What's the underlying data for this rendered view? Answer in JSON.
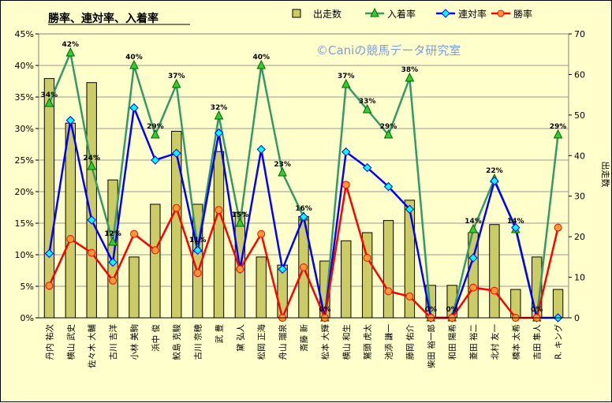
{
  "chart_data": {
    "type": "bar",
    "title": "勝率、連対率、入着率",
    "watermark": "©Caniの競馬データ研究室",
    "ylabel_right": "出走数",
    "y_left": {
      "min": 0,
      "max": 45,
      "step": 5,
      "unit": "%"
    },
    "y_right": {
      "min": 0,
      "max": 70,
      "step": 10
    },
    "grid": true,
    "legend_position": "top",
    "categories": [
      "丹内 祐次",
      "横山 武史",
      "佐々木 大輔",
      "古川 吉洋",
      "小林 美駒",
      "浜中 俊",
      "鮫島 克駿",
      "古川 奈穂",
      "武 豊",
      "黛 弘人",
      "松岡 正海",
      "舟山 瑠泉",
      "斎藤 新",
      "松本 大輝",
      "横山 和生",
      "鷲頭 虎太",
      "池添 謙一",
      "藤岡 佑介",
      "柴田 裕一郎",
      "和田 陽希",
      "菱田 裕二",
      "北村 友一",
      "橋本 太希",
      "吉田 隼人",
      "R. キング"
    ],
    "series": [
      {
        "name": "出走数",
        "kind": "bar",
        "axis": "right",
        "color": "#cccc66",
        "values": [
          59,
          48,
          58,
          34,
          15,
          28,
          46,
          28,
          41,
          26,
          15,
          13,
          25,
          14,
          19,
          21,
          24,
          29,
          8,
          8,
          21,
          23,
          7,
          15,
          7
        ]
      },
      {
        "name": "入着率",
        "kind": "line",
        "axis": "left",
        "color": "#339966",
        "marker": "triangle",
        "values": [
          34,
          42,
          24,
          12,
          40,
          29,
          37,
          11,
          32,
          15,
          40,
          23,
          16,
          0,
          37,
          33,
          29,
          38,
          0,
          0,
          14,
          22,
          14,
          0,
          29
        ]
      },
      {
        "name": "連対率",
        "kind": "line",
        "axis": "left",
        "color": "#0000ff",
        "marker": "diamond",
        "values": [
          10.2,
          31.3,
          15.5,
          8.8,
          33.3,
          25,
          26.1,
          10.7,
          29.3,
          7.7,
          26.7,
          7.7,
          16,
          0,
          26.3,
          23.8,
          20.8,
          17.2,
          0,
          0,
          9.5,
          21.7,
          14.3,
          0,
          0
        ]
      },
      {
        "name": "勝率",
        "kind": "line",
        "axis": "left",
        "color": "#ff0000",
        "marker": "circle",
        "values": [
          5.1,
          12.5,
          10.3,
          5.9,
          13.3,
          10.7,
          17.4,
          7.1,
          17.1,
          7.7,
          13.3,
          0,
          8,
          0,
          21.1,
          9.5,
          4.2,
          3.4,
          0,
          0,
          4.8,
          4.3,
          0,
          0,
          14.3
        ]
      }
    ],
    "data_labels_series": "入着率",
    "data_labels": [
      "34%",
      "42%",
      "24%",
      "12%",
      "40%",
      "29%",
      "37%",
      "11%",
      "32%",
      "15%",
      "40%",
      "23%",
      "16%",
      "0%",
      "37%",
      "33%",
      "29%",
      "38%",
      "0%",
      "0%",
      "14%",
      "22%",
      "14%",
      "0%",
      "29%"
    ]
  }
}
